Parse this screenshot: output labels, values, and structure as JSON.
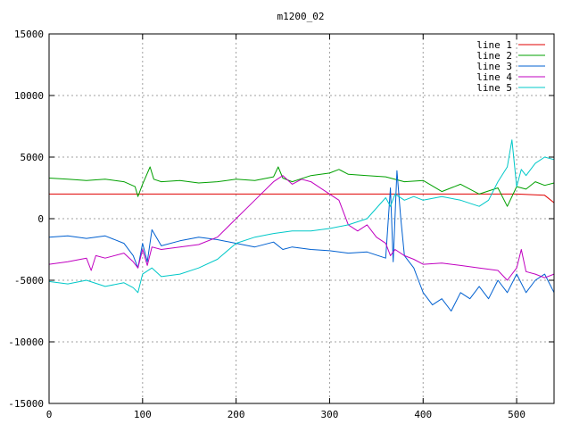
{
  "chart_data": {
    "type": "line",
    "title": "m1200_02",
    "xlabel": "",
    "ylabel": "",
    "xlim": [
      0,
      540
    ],
    "ylim": [
      -15000,
      15000
    ],
    "xticks": [
      0,
      100,
      200,
      300,
      400,
      500
    ],
    "yticks": [
      -15000,
      -10000,
      -5000,
      0,
      5000,
      10000,
      15000
    ],
    "grid": true,
    "legend_position": "top-right",
    "series": [
      {
        "name": "line 1",
        "color": "#e00000",
        "x": [
          0,
          100,
          200,
          300,
          400,
          500,
          530,
          540
        ],
        "y": [
          2000,
          2000,
          2000,
          2000,
          2000,
          2000,
          1900,
          1300
        ]
      },
      {
        "name": "line 2",
        "color": "#00a000",
        "x": [
          0,
          20,
          40,
          60,
          80,
          92,
          95,
          100,
          108,
          112,
          120,
          140,
          160,
          180,
          200,
          220,
          240,
          245,
          250,
          260,
          280,
          300,
          310,
          320,
          340,
          360,
          380,
          400,
          420,
          440,
          460,
          480,
          490,
          500,
          510,
          520,
          530,
          540
        ],
        "y": [
          3300,
          3200,
          3100,
          3200,
          3000,
          2600,
          1800,
          2800,
          4200,
          3200,
          3000,
          3100,
          2900,
          3000,
          3200,
          3100,
          3400,
          4200,
          3300,
          3000,
          3500,
          3700,
          4000,
          3600,
          3500,
          3400,
          3000,
          3100,
          2200,
          2800,
          2000,
          2500,
          1000,
          2600,
          2400,
          3000,
          2700,
          2900
        ]
      },
      {
        "name": "line 3",
        "color": "#0060d0",
        "x": [
          0,
          20,
          40,
          60,
          80,
          90,
          95,
          100,
          105,
          110,
          120,
          140,
          160,
          180,
          200,
          220,
          240,
          250,
          260,
          280,
          300,
          320,
          340,
          360,
          365,
          368,
          372,
          376,
          380,
          385,
          390,
          395,
          400,
          410,
          420,
          430,
          440,
          450,
          460,
          470,
          480,
          490,
          500,
          510,
          520,
          530,
          540
        ],
        "y": [
          -1500,
          -1400,
          -1600,
          -1400,
          -2000,
          -3000,
          -4000,
          -2000,
          -3500,
          -900,
          -2200,
          -1800,
          -1500,
          -1700,
          -2000,
          -2300,
          -1900,
          -2500,
          -2300,
          -2500,
          -2600,
          -2800,
          -2700,
          -3200,
          2500,
          -3500,
          3900,
          100,
          -3000,
          -3500,
          -4000,
          -5000,
          -6000,
          -7000,
          -6500,
          -7500,
          -6000,
          -6500,
          -5500,
          -6500,
          -5000,
          -6000,
          -4500,
          -6000,
          -5000,
          -4500,
          -6000
        ]
      },
      {
        "name": "line 4",
        "color": "#c000c0",
        "x": [
          0,
          20,
          40,
          45,
          50,
          60,
          80,
          90,
          95,
          100,
          105,
          110,
          120,
          140,
          160,
          180,
          200,
          220,
          240,
          250,
          260,
          270,
          280,
          300,
          310,
          320,
          330,
          340,
          350,
          360,
          365,
          370,
          380,
          390,
          400,
          420,
          440,
          460,
          480,
          490,
          500,
          505,
          510,
          520,
          530,
          540
        ],
        "y": [
          -3700,
          -3500,
          -3200,
          -4200,
          -3000,
          -3200,
          -2800,
          -3500,
          -4000,
          -2500,
          -3800,
          -2300,
          -2500,
          -2300,
          -2100,
          -1500,
          0,
          1500,
          3000,
          3500,
          2800,
          3200,
          3000,
          2000,
          1500,
          -500,
          -1000,
          -500,
          -1500,
          -2000,
          -3000,
          -2500,
          -3000,
          -3300,
          -3700,
          -3600,
          -3800,
          -4000,
          -4200,
          -5000,
          -4000,
          -2500,
          -4300,
          -4500,
          -4800,
          -4500
        ]
      },
      {
        "name": "line 5",
        "color": "#00c8c8",
        "x": [
          0,
          20,
          40,
          60,
          80,
          90,
          95,
          100,
          110,
          120,
          140,
          160,
          180,
          200,
          220,
          240,
          260,
          280,
          300,
          320,
          340,
          360,
          365,
          370,
          380,
          390,
          400,
          420,
          440,
          460,
          470,
          480,
          490,
          495,
          500,
          505,
          510,
          520,
          530,
          540
        ],
        "y": [
          -5100,
          -5300,
          -5000,
          -5500,
          -5200,
          -5600,
          -6000,
          -4500,
          -4000,
          -4700,
          -4500,
          -4000,
          -3300,
          -2000,
          -1500,
          -1200,
          -1000,
          -1000,
          -800,
          -500,
          0,
          1700,
          1000,
          2000,
          1500,
          1800,
          1500,
          1800,
          1500,
          1000,
          1500,
          3000,
          4200,
          6400,
          2600,
          4000,
          3500,
          4500,
          5000,
          4800
        ]
      }
    ]
  }
}
